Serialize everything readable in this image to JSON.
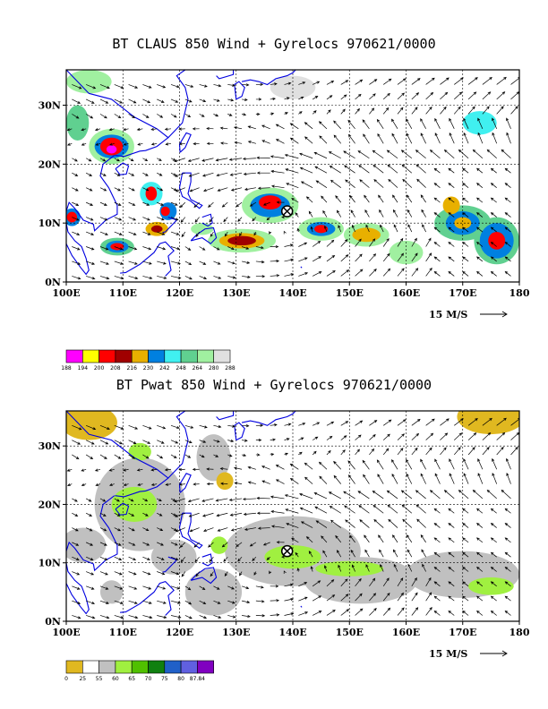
{
  "panels": [
    {
      "title": "BT CLAUS 850 Wind + Gyrelocs 970621/0000",
      "field": "claus",
      "colorbar": {
        "colors": [
          "#ff00ff",
          "#ffff00",
          "#ff0000",
          "#a00000",
          "#e8b000",
          "#0080e0",
          "#40f0f0",
          "#60d090",
          "#a0f0a0",
          "#e0e0e0"
        ],
        "labels": [
          "188",
          "194",
          "200",
          "208",
          "216",
          "230",
          "242",
          "248",
          "264",
          "280",
          "288"
        ]
      }
    },
    {
      "title": "BT Pwat 850 Wind + Gyrelocs 970621/0000",
      "field": "pwat",
      "colorbar": {
        "colors": [
          "#e0b820",
          "#ffffff",
          "#c0c0c0",
          "#a0f040",
          "#50c000",
          "#108010",
          "#2060c8",
          "#6060e0",
          "#8000c0"
        ],
        "labels": [
          "0",
          "25",
          "55",
          "60",
          "65",
          "70",
          "75",
          "80",
          "87.84"
        ]
      }
    }
  ],
  "axes": {
    "x_ticks": [
      "100E",
      "110E",
      "120E",
      "130E",
      "140E",
      "150E",
      "160E",
      "170E",
      "180"
    ],
    "y_ticks": [
      "0N",
      "10N",
      "20N",
      "30N"
    ],
    "lon_range": [
      100,
      180
    ],
    "lat_range": [
      0,
      36
    ],
    "grid": true
  },
  "reference_vector": "15 M/S",
  "gyre_location": {
    "lon": 139,
    "lat": 12,
    "symbol": "circle-x-icon"
  },
  "map_colors": {
    "coastline": "#0000e0",
    "frame": "#000000"
  }
}
